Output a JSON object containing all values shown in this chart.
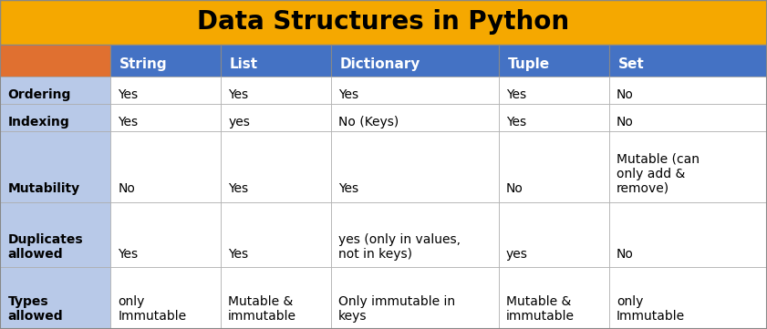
{
  "title": "Data Structures in Python",
  "title_bg": "#F5A800",
  "title_color": "#000000",
  "header_bg": "#4472C4",
  "header_text_color": "#FFFFFF",
  "row_label_bg": "#B8C9E8",
  "cell_bg": "#FFFFFF",
  "orange_cell": "#E07030",
  "border_color": "#AAAAAA",
  "text_color": "#000000",
  "col_headers": [
    "String",
    "List",
    "Dictionary",
    "Tuple",
    "Set"
  ],
  "row_labels": [
    "Ordering",
    "Indexing",
    "Mutability",
    "Duplicates\nallowed",
    "Types\nallowed"
  ],
  "table_data": [
    [
      "Yes",
      "Yes",
      "Yes",
      "Yes",
      "No"
    ],
    [
      "Yes",
      "yes",
      "No (Keys)",
      "Yes",
      "No"
    ],
    [
      "No",
      "Yes",
      "Yes",
      "No",
      "Mutable (can\nonly add &\nremove)"
    ],
    [
      "Yes",
      "Yes",
      "yes (only in values,\nnot in keys)",
      "yes",
      "No"
    ],
    [
      "only\nImmutable",
      "Mutable &\nimmutable",
      "Only immutable in\nkeys",
      "Mutable &\nimmutable",
      "only\nImmutable"
    ]
  ],
  "title_fontsize": 20,
  "header_fontsize": 11,
  "cell_fontsize": 10,
  "label_fontsize": 10,
  "figsize": [
    8.41,
    3.61
  ],
  "dpi": 100
}
